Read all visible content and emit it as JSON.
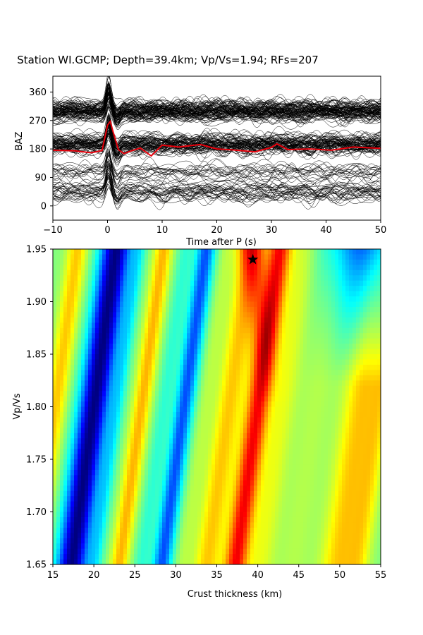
{
  "chart_data": [
    {
      "type": "line",
      "title": "Station WI.GCMP; Depth=39.4km; Vp/Vs=1.94; RFs=207",
      "xlabel": "Time after P (s)",
      "ylabel": "BAZ",
      "xlim": [
        -10,
        50
      ],
      "ylim": [
        -45,
        410
      ],
      "xticks": [
        -10,
        0,
        10,
        20,
        30,
        40,
        50
      ],
      "yticks": [
        0,
        90,
        180,
        270,
        360
      ],
      "trace_count": 207,
      "trace_color": "#000000",
      "stack_color": "#e8000b",
      "stack_series": {
        "x": [
          -10,
          -6,
          -3,
          -1,
          0,
          0.5,
          1,
          2,
          3,
          4,
          6,
          8,
          10,
          13,
          17,
          20,
          23,
          27,
          30,
          31,
          33,
          37,
          41,
          45,
          50
        ],
        "values": [
          176,
          174,
          168,
          175,
          255,
          267,
          235,
          178,
          165,
          172,
          183,
          158,
          192,
          186,
          194,
          180,
          177,
          171,
          185,
          196,
          178,
          180,
          176,
          186,
          182
        ]
      }
    },
    {
      "type": "heatmap",
      "xlabel": "Crust thickness (km)",
      "ylabel": "Vp/Vs",
      "xlim": [
        15,
        55
      ],
      "ylim": [
        1.65,
        1.95
      ],
      "xticks": [
        15,
        20,
        25,
        30,
        35,
        40,
        45,
        50,
        55
      ],
      "yticks": [
        1.65,
        1.7,
        1.75,
        1.8,
        1.85,
        1.9,
        1.95
      ],
      "colormap": "jet",
      "marker": {
        "symbol": "star",
        "x": 39.4,
        "y": 1.94,
        "color": "#000000"
      }
    }
  ]
}
